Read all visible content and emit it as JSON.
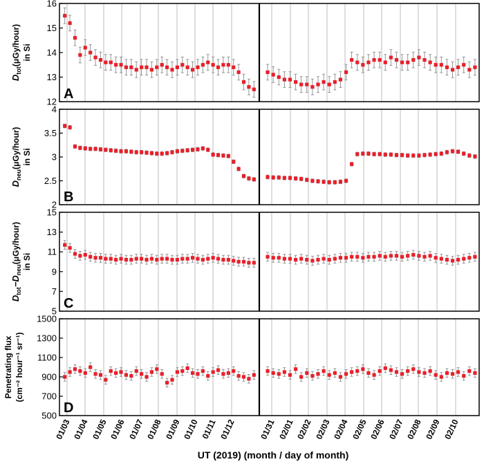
{
  "chart_data": {
    "type": "scatter",
    "xlabel": "UT (2019) (month / day of month)",
    "x_ticks_left": [
      "01/03",
      "01/04",
      "01/05",
      "01/06",
      "01/07",
      "01/08",
      "01/09",
      "01/10",
      "01/11",
      "01/12"
    ],
    "x_ticks_right": [
      "01/31",
      "02/01",
      "02/02",
      "02/03",
      "02/04",
      "02/05",
      "02/06",
      "02/07",
      "02/08",
      "02/09",
      "02/10"
    ],
    "colors": {
      "marker": "#e8202a",
      "errorbar": "#8a8a8a",
      "gridline": "#c8c8c8",
      "axis": "#000000"
    },
    "panels": [
      {
        "id": "A",
        "ylabel_main": "D",
        "ylabel_sub": "tot",
        "ylabel_unit": "(μGy/hour)",
        "ylabel_line2": "in Si",
        "ylim": [
          12,
          16
        ],
        "yticks": [
          "12",
          "13",
          "14",
          "15",
          "16"
        ],
        "err": 0.32,
        "series_left": [
          15.5,
          15.2,
          14.6,
          13.9,
          14.2,
          14.0,
          13.8,
          13.7,
          13.6,
          13.6,
          13.5,
          13.5,
          13.4,
          13.4,
          13.3,
          13.4,
          13.4,
          13.3,
          13.4,
          13.5,
          13.4,
          13.3,
          13.4,
          13.5,
          13.4,
          13.3,
          13.4,
          13.5,
          13.6,
          13.5,
          13.4,
          13.5,
          13.5,
          13.4,
          13.2,
          12.8,
          12.6,
          12.5
        ],
        "series_right": [
          13.2,
          13.1,
          13.0,
          12.9,
          12.9,
          12.8,
          12.7,
          12.7,
          12.6,
          12.7,
          12.8,
          12.7,
          12.8,
          12.9,
          13.2,
          13.7,
          13.6,
          13.5,
          13.6,
          13.7,
          13.7,
          13.6,
          13.8,
          13.7,
          13.6,
          13.6,
          13.7,
          13.8,
          13.7,
          13.6,
          13.5,
          13.5,
          13.4,
          13.3,
          13.4,
          13.5,
          13.3,
          13.4
        ]
      },
      {
        "id": "B",
        "ylabel_main": "D",
        "ylabel_sub": "neu",
        "ylabel_unit": "(μGy/hour)",
        "ylabel_line2": "in Si",
        "ylim": [
          2,
          4
        ],
        "yticks": [
          "2",
          "2.5",
          "3",
          "3.5",
          "4"
        ],
        "err": 0.04,
        "series_left": [
          3.65,
          3.62,
          3.22,
          3.19,
          3.18,
          3.17,
          3.17,
          3.16,
          3.15,
          3.14,
          3.13,
          3.12,
          3.12,
          3.11,
          3.1,
          3.1,
          3.09,
          3.08,
          3.07,
          3.07,
          3.08,
          3.1,
          3.12,
          3.13,
          3.14,
          3.15,
          3.16,
          3.18,
          3.15,
          3.05,
          3.04,
          3.03,
          3.02,
          2.9,
          2.75,
          2.6,
          2.55,
          2.53
        ],
        "series_right": [
          2.58,
          2.57,
          2.57,
          2.56,
          2.56,
          2.55,
          2.54,
          2.52,
          2.5,
          2.49,
          2.48,
          2.47,
          2.47,
          2.48,
          2.5,
          2.85,
          3.06,
          3.07,
          3.07,
          3.06,
          3.06,
          3.05,
          3.05,
          3.04,
          3.04,
          3.03,
          3.03,
          3.03,
          3.04,
          3.05,
          3.06,
          3.07,
          3.1,
          3.12,
          3.11,
          3.07,
          3.03,
          3.01
        ]
      },
      {
        "id": "C",
        "ylabel_main": "D",
        "ylabel_sub": "tot",
        "ylabel_minus": "−D",
        "ylabel_sub2": "neu",
        "ylabel_unit": "(μGy/hour)",
        "ylabel_line2": "in Si",
        "ylim": [
          5,
          15
        ],
        "yticks": [
          "5",
          "7",
          "9",
          "11",
          "13",
          "15"
        ],
        "err": 0.45,
        "series_left": [
          11.7,
          11.4,
          10.8,
          10.6,
          10.7,
          10.5,
          10.4,
          10.4,
          10.3,
          10.3,
          10.2,
          10.3,
          10.2,
          10.2,
          10.3,
          10.3,
          10.2,
          10.3,
          10.2,
          10.3,
          10.3,
          10.2,
          10.2,
          10.3,
          10.3,
          10.4,
          10.3,
          10.2,
          10.3,
          10.4,
          10.3,
          10.2,
          10.2,
          10.1,
          10.0,
          10.0,
          9.9,
          9.9
        ],
        "series_right": [
          10.5,
          10.4,
          10.4,
          10.3,
          10.3,
          10.2,
          10.3,
          10.2,
          10.1,
          10.2,
          10.3,
          10.2,
          10.3,
          10.4,
          10.4,
          10.5,
          10.5,
          10.4,
          10.5,
          10.5,
          10.6,
          10.5,
          10.6,
          10.6,
          10.5,
          10.6,
          10.7,
          10.6,
          10.5,
          10.6,
          10.4,
          10.3,
          10.2,
          10.1,
          10.2,
          10.3,
          10.4,
          10.5
        ]
      },
      {
        "id": "D",
        "ylabel_text": "Penetrating flux",
        "ylabel_unit": "(cm⁻² hour⁻¹ sr⁻¹)",
        "ylim": [
          500,
          1500
        ],
        "yticks": [
          "500",
          "700",
          "900",
          "1100",
          "1300",
          "1500"
        ],
        "err": 45,
        "series_left": [
          900,
          950,
          980,
          960,
          940,
          1000,
          930,
          920,
          870,
          960,
          940,
          950,
          920,
          910,
          960,
          930,
          900,
          950,
          980,
          930,
          840,
          870,
          950,
          960,
          990,
          940,
          930,
          960,
          910,
          950,
          970,
          930,
          940,
          960,
          910,
          900,
          880,
          920
        ],
        "series_right": [
          960,
          940,
          930,
          950,
          920,
          980,
          900,
          940,
          910,
          930,
          960,
          920,
          940,
          900,
          930,
          950,
          960,
          980,
          940,
          920,
          960,
          990,
          970,
          950,
          930,
          960,
          980,
          950,
          940,
          960,
          920,
          900,
          940,
          930,
          950,
          910,
          960,
          940
        ]
      }
    ]
  }
}
